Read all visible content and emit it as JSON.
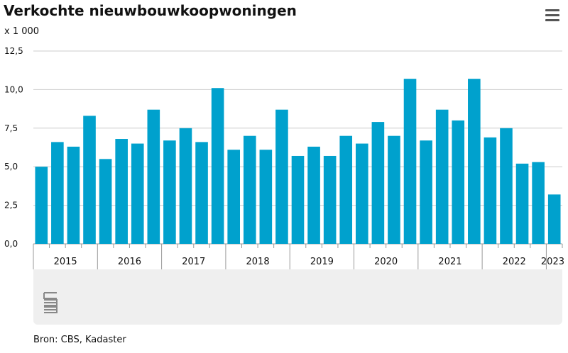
{
  "page": {
    "title": "Verkochte nieuwbouwkoopwoningen",
    "unit_label": "x 1 000",
    "source": "Bron: CBS, Kadaster",
    "menu_icon": "hamburger-menu-icon",
    "logo_icon": "cbs-logo-icon"
  },
  "colors": {
    "bar": "#00a1cd",
    "grid": "#cccccc",
    "axis": "#999999",
    "panel": "#efefef"
  },
  "chart_data": {
    "type": "bar",
    "title": "Verkochte nieuwbouwkoopwoningen",
    "ylabel": "x 1 000",
    "ylim": [
      0,
      12.5
    ],
    "yticks": [
      0,
      2.5,
      5,
      7.5,
      10,
      12.5
    ],
    "ytick_labels": [
      "0,0",
      "2,5",
      "5,0",
      "7,5",
      "10,0",
      "12,5"
    ],
    "grid": true,
    "categories": [
      "2015 Q1",
      "2015 Q2",
      "2015 Q3",
      "2015 Q4",
      "2016 Q1",
      "2016 Q2",
      "2016 Q3",
      "2016 Q4",
      "2017 Q1",
      "2017 Q2",
      "2017 Q3",
      "2017 Q4",
      "2018 Q1",
      "2018 Q2",
      "2018 Q3",
      "2018 Q4",
      "2019 Q1",
      "2019 Q2",
      "2019 Q3",
      "2019 Q4",
      "2020 Q1",
      "2020 Q2",
      "2020 Q3",
      "2020 Q4",
      "2021 Q1",
      "2021 Q2",
      "2021 Q3",
      "2021 Q4",
      "2022 Q1",
      "2022 Q2",
      "2022 Q3",
      "2022 Q4",
      "2023 Q1"
    ],
    "values": [
      5.0,
      6.6,
      6.3,
      8.3,
      5.5,
      6.8,
      6.5,
      8.7,
      6.7,
      7.5,
      6.6,
      10.1,
      6.1,
      7.0,
      6.1,
      8.7,
      5.7,
      6.3,
      5.7,
      7.0,
      6.5,
      7.9,
      7.0,
      10.7,
      6.7,
      8.7,
      8.0,
      10.7,
      6.9,
      7.5,
      5.2,
      5.3,
      3.2
    ],
    "year_labels": [
      "2015",
      "2016",
      "2017",
      "2018",
      "2019",
      "2020",
      "2021",
      "2022",
      "2023"
    ]
  }
}
